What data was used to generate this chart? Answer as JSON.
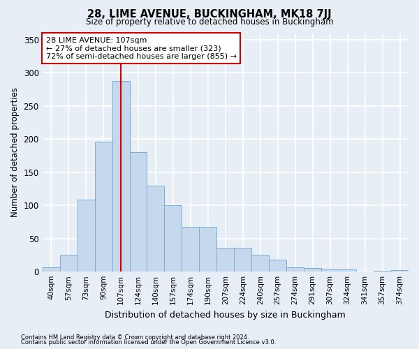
{
  "title": "28, LIME AVENUE, BUCKINGHAM, MK18 7JJ",
  "subtitle": "Size of property relative to detached houses in Buckingham",
  "xlabel": "Distribution of detached houses by size in Buckingham",
  "ylabel": "Number of detached properties",
  "categories": [
    "40sqm",
    "57sqm",
    "73sqm",
    "90sqm",
    "107sqm",
    "124sqm",
    "140sqm",
    "157sqm",
    "174sqm",
    "190sqm",
    "207sqm",
    "224sqm",
    "240sqm",
    "257sqm",
    "274sqm",
    "291sqm",
    "307sqm",
    "324sqm",
    "341sqm",
    "357sqm",
    "374sqm"
  ],
  "values": [
    6,
    26,
    109,
    196,
    288,
    180,
    130,
    100,
    68,
    68,
    36,
    36,
    26,
    18,
    7,
    5,
    3,
    3,
    0,
    1,
    2
  ],
  "bar_color": "#c5d8ec",
  "bar_edge_color": "#7aadd4",
  "marker_index": 4,
  "marker_color": "#cc0000",
  "annotation_text": "28 LIME AVENUE: 107sqm\n← 27% of detached houses are smaller (323)\n72% of semi-detached houses are larger (855) →",
  "annotation_box_color": "#ffffff",
  "annotation_box_edge": "#cc0000",
  "footnote1": "Contains HM Land Registry data © Crown copyright and database right 2024.",
  "footnote2": "Contains public sector information licensed under the Open Government Licence v3.0.",
  "bg_color": "#e8eef5",
  "plot_bg_color": "#e8eef5",
  "grid_color": "#ffffff",
  "ylim": [
    0,
    360
  ],
  "yticks": [
    0,
    50,
    100,
    150,
    200,
    250,
    300,
    350
  ]
}
